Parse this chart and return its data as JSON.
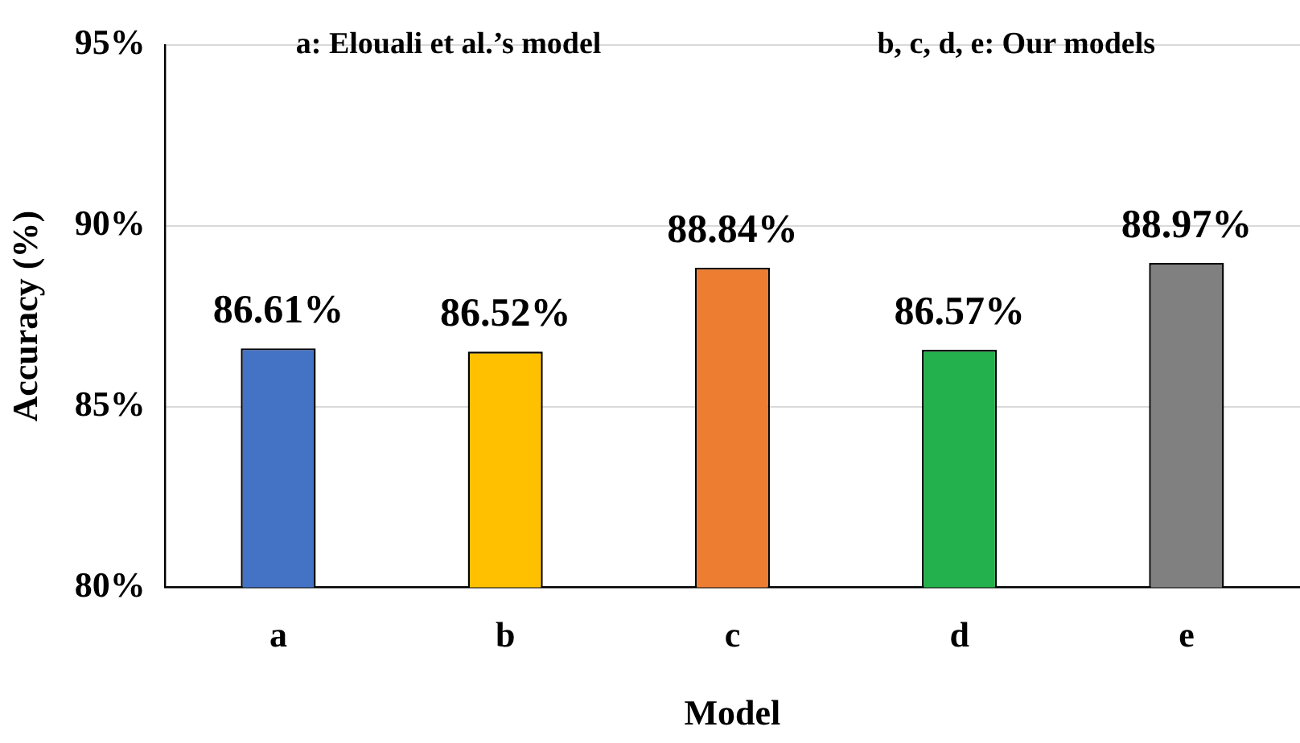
{
  "chart_data": {
    "type": "bar",
    "xlabel": "Model",
    "ylabel": "Accuracy (%)",
    "annotations": [
      "a: Elouali et al.’s model",
      "b, c, d, e: Our models"
    ],
    "categories": [
      "a",
      "b",
      "c",
      "d",
      "e"
    ],
    "values": [
      86.61,
      86.52,
      88.84,
      86.57,
      88.97
    ],
    "colors": [
      "#4472c4",
      "#ffc000",
      "#ed7d31",
      "#22b14c",
      "#808080"
    ],
    "value_labels": [
      "86.61%",
      "86.52%",
      "88.84%",
      "86.57%",
      "88.97%"
    ],
    "ylim": [
      80,
      95
    ],
    "yticks": [
      {
        "value": 80,
        "label": "80%"
      },
      {
        "value": 85,
        "label": "85%"
      },
      {
        "value": 90,
        "label": "90%"
      },
      {
        "value": 95,
        "label": "95%"
      }
    ],
    "grid": "y",
    "legend": false
  }
}
